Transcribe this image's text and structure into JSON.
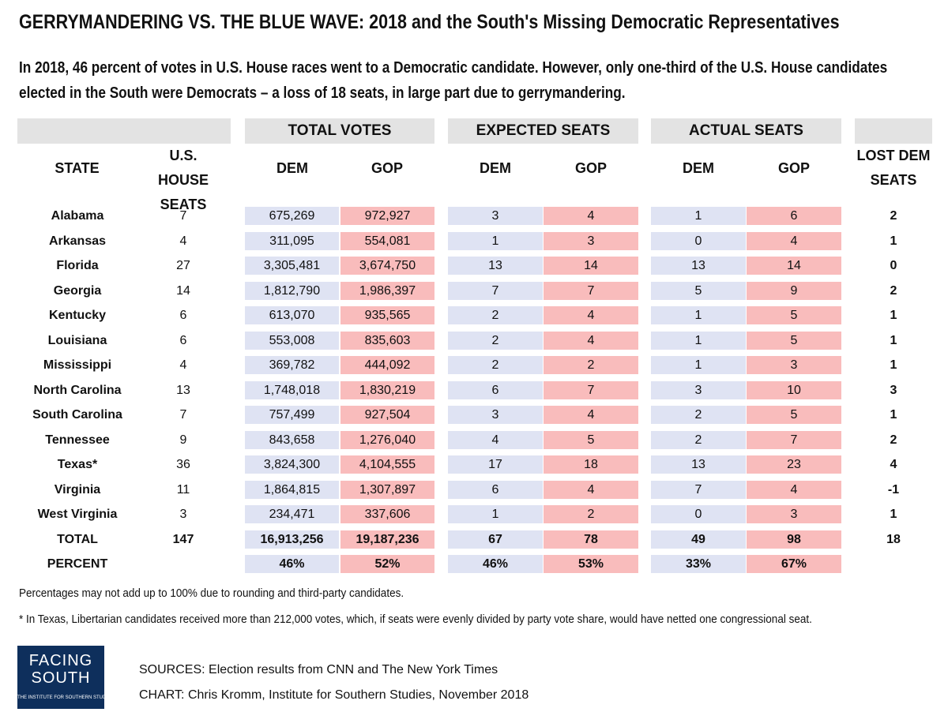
{
  "title": "GERRYMANDERING VS. THE BLUE WAVE: 2018 and the South's Missing Democratic Representatives",
  "subtitle": "In 2018, 46 percent of votes in U.S. House races went to a Democratic candidate. However, only one-third of the U.S. House candidates elected in the South were Democrats – a loss of 18 seats, in large part due to gerrymandering.",
  "chart_data": {
    "type": "table",
    "group_headers": [
      "TOTAL VOTES",
      "EXPECTED SEATS",
      "ACTUAL SEATS"
    ],
    "columns": {
      "state": "STATE",
      "seats": "U.S. HOUSE SEATS",
      "dem": "DEM",
      "gop": "GOP",
      "lost": "LOST DEM SEATS"
    },
    "rows": [
      {
        "state": "Alabama",
        "seats": "7",
        "votes_dem": "675,269",
        "votes_gop": "972,927",
        "exp_dem": "3",
        "exp_gop": "4",
        "act_dem": "1",
        "act_gop": "6",
        "lost": "2"
      },
      {
        "state": "Arkansas",
        "seats": "4",
        "votes_dem": "311,095",
        "votes_gop": "554,081",
        "exp_dem": "1",
        "exp_gop": "3",
        "act_dem": "0",
        "act_gop": "4",
        "lost": "1"
      },
      {
        "state": "Florida",
        "seats": "27",
        "votes_dem": "3,305,481",
        "votes_gop": "3,674,750",
        "exp_dem": "13",
        "exp_gop": "14",
        "act_dem": "13",
        "act_gop": "14",
        "lost": "0"
      },
      {
        "state": "Georgia",
        "seats": "14",
        "votes_dem": "1,812,790",
        "votes_gop": "1,986,397",
        "exp_dem": "7",
        "exp_gop": "7",
        "act_dem": "5",
        "act_gop": "9",
        "lost": "2"
      },
      {
        "state": "Kentucky",
        "seats": "6",
        "votes_dem": "613,070",
        "votes_gop": "935,565",
        "exp_dem": "2",
        "exp_gop": "4",
        "act_dem": "1",
        "act_gop": "5",
        "lost": "1"
      },
      {
        "state": "Louisiana",
        "seats": "6",
        "votes_dem": "553,008",
        "votes_gop": "835,603",
        "exp_dem": "2",
        "exp_gop": "4",
        "act_dem": "1",
        "act_gop": "5",
        "lost": "1"
      },
      {
        "state": "Mississippi",
        "seats": "4",
        "votes_dem": "369,782",
        "votes_gop": "444,092",
        "exp_dem": "2",
        "exp_gop": "2",
        "act_dem": "1",
        "act_gop": "3",
        "lost": "1"
      },
      {
        "state": "North Carolina",
        "seats": "13",
        "votes_dem": "1,748,018",
        "votes_gop": "1,830,219",
        "exp_dem": "6",
        "exp_gop": "7",
        "act_dem": "3",
        "act_gop": "10",
        "lost": "3"
      },
      {
        "state": "South Carolina",
        "seats": "7",
        "votes_dem": "757,499",
        "votes_gop": "927,504",
        "exp_dem": "3",
        "exp_gop": "4",
        "act_dem": "2",
        "act_gop": "5",
        "lost": "1"
      },
      {
        "state": "Tennessee",
        "seats": "9",
        "votes_dem": "843,658",
        "votes_gop": "1,276,040",
        "exp_dem": "4",
        "exp_gop": "5",
        "act_dem": "2",
        "act_gop": "7",
        "lost": "2"
      },
      {
        "state": "Texas*",
        "seats": "36",
        "votes_dem": "3,824,300",
        "votes_gop": "4,104,555",
        "exp_dem": "17",
        "exp_gop": "18",
        "act_dem": "13",
        "act_gop": "23",
        "lost": "4"
      },
      {
        "state": "Virginia",
        "seats": "11",
        "votes_dem": "1,864,815",
        "votes_gop": "1,307,897",
        "exp_dem": "6",
        "exp_gop": "4",
        "act_dem": "7",
        "act_gop": "4",
        "lost": "-1"
      },
      {
        "state": "West Virginia",
        "seats": "3",
        "votes_dem": "234,471",
        "votes_gop": "337,606",
        "exp_dem": "1",
        "exp_gop": "2",
        "act_dem": "0",
        "act_gop": "3",
        "lost": "1"
      }
    ],
    "total": {
      "state": "TOTAL",
      "seats": "147",
      "votes_dem": "16,913,256",
      "votes_gop": "19,187,236",
      "exp_dem": "67",
      "exp_gop": "78",
      "act_dem": "49",
      "act_gop": "98",
      "lost": "18"
    },
    "percent": {
      "state": "PERCENT",
      "seats": "",
      "votes_dem": "46%",
      "votes_gop": "52%",
      "exp_dem": "46%",
      "exp_gop": "53%",
      "act_dem": "33%",
      "act_gop": "67%",
      "lost": ""
    },
    "colors": {
      "dem": "#dfe3f3",
      "gop": "#f9bcbc",
      "header_band": "#e3e3e3"
    }
  },
  "notes": {
    "rounding": "Percentages may not add up to 100% due to rounding and third-party candidates.",
    "texas": "* In Texas, Libertarian candidates received more than 212,000 votes, which, if seats were evenly divided by party vote share, would have netted one congressional seat."
  },
  "logo": {
    "line1": "FACING",
    "line2": "SOUTH",
    "line3": "THE INSTITUTE FOR SOUTHERN STUDIES",
    "color": "#0e2f5c"
  },
  "sources": {
    "sources": "SOURCES:  Election results from CNN and The New York Times",
    "chart": "CHART: Chris Kromm, Institute for Southern Studies, November 2018"
  }
}
